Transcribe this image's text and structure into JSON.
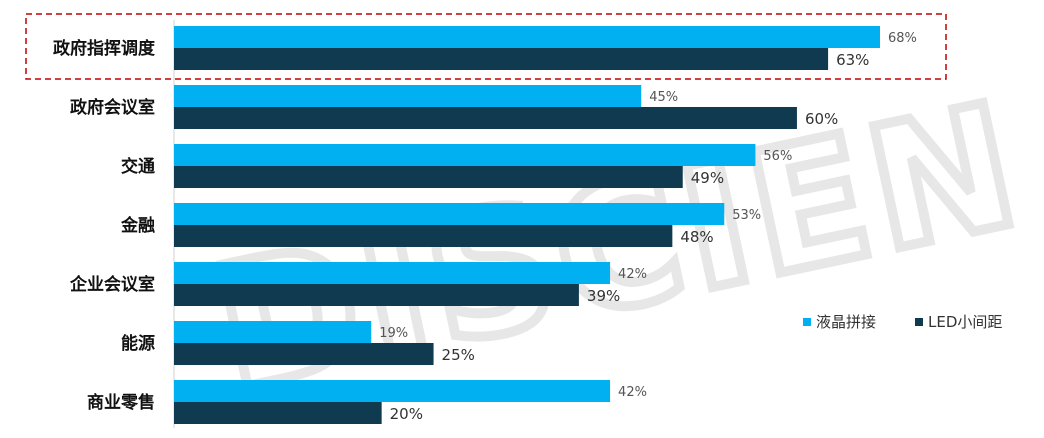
{
  "chart_data": {
    "type": "bar",
    "orientation": "horizontal",
    "categories": [
      "政府指挥调度",
      "政府会议室",
      "交通",
      "金融",
      "企业会议室",
      "能源",
      "商业零售"
    ],
    "series": [
      {
        "name": "液晶拼接",
        "values": [
          68,
          45,
          56,
          53,
          42,
          19,
          42
        ],
        "value_labels": [
          "68%",
          "45%",
          "56%",
          "53%",
          "42%",
          "19%",
          "42%"
        ]
      },
      {
        "name": "LED小间距",
        "values": [
          63,
          60,
          49,
          48,
          39,
          25,
          20
        ],
        "value_labels": [
          "63%",
          "60%",
          "49%",
          "48%",
          "39%",
          "25%",
          "20%"
        ]
      }
    ],
    "xlim": [
      0,
      100
    ],
    "grid": false,
    "legend_position": "right",
    "highlighted_category": "政府指挥调度",
    "watermark": "DISCIEN",
    "colors": {
      "series_a": "#00b0f0",
      "series_b": "#0f3a50",
      "highlight": "#c00000",
      "axis": "#d0d0d0"
    }
  }
}
